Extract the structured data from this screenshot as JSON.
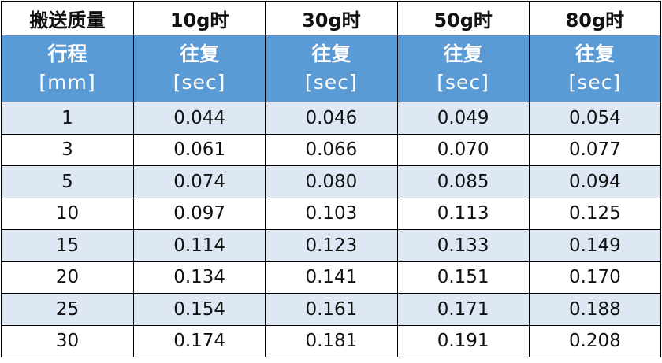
{
  "table": {
    "header": [
      "搬送质量",
      "10g时",
      "30g时",
      "50g时",
      "80g时"
    ],
    "subheader": [
      [
        "行程",
        "[mm]"
      ],
      [
        "往复",
        "[sec]"
      ],
      [
        "往复",
        "[sec]"
      ],
      [
        "往复",
        "[sec]"
      ],
      [
        "往复",
        "[sec]"
      ]
    ],
    "rows": [
      [
        "1",
        "0.044",
        "0.046",
        "0.049",
        "0.054"
      ],
      [
        "3",
        "0.061",
        "0.066",
        "0.070",
        "0.077"
      ],
      [
        "5",
        "0.074",
        "0.080",
        "0.085",
        "0.094"
      ],
      [
        "10",
        "0.097",
        "0.103",
        "0.113",
        "0.125"
      ],
      [
        "15",
        "0.114",
        "0.123",
        "0.133",
        "0.149"
      ],
      [
        "20",
        "0.134",
        "0.141",
        "0.151",
        "0.170"
      ],
      [
        "25",
        "0.154",
        "0.161",
        "0.171",
        "0.188"
      ],
      [
        "30",
        "0.174",
        "0.181",
        "0.191",
        "0.208"
      ]
    ]
  }
}
